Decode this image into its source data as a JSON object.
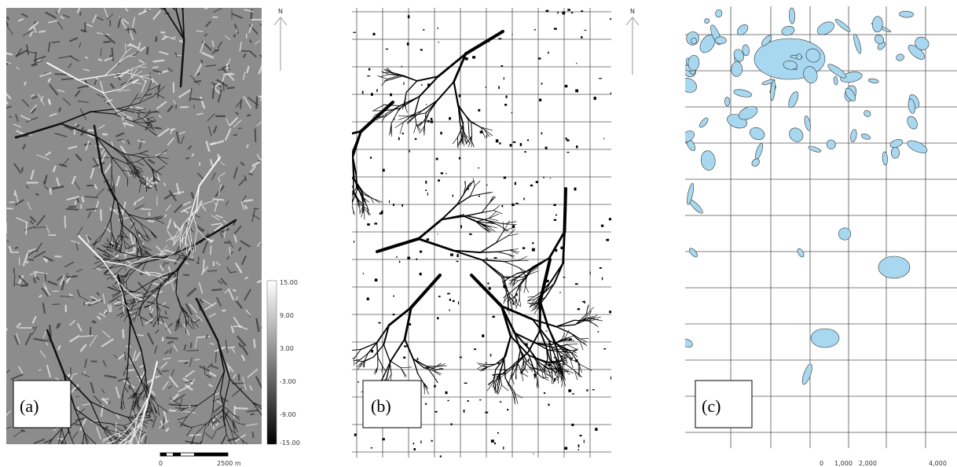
{
  "panels": [
    {
      "label": "(a)",
      "north": "N",
      "legend": [
        "15.00",
        "9.00",
        "3.00",
        "-3.00",
        "-9.00",
        "-15.00"
      ],
      "scale": [
        "0",
        "2500 m"
      ]
    },
    {
      "label": "(b)",
      "north": "N"
    },
    {
      "label": "(c)",
      "scale": [
        "0",
        "1,000",
        "2,000",
        "4,000"
      ]
    }
  ]
}
